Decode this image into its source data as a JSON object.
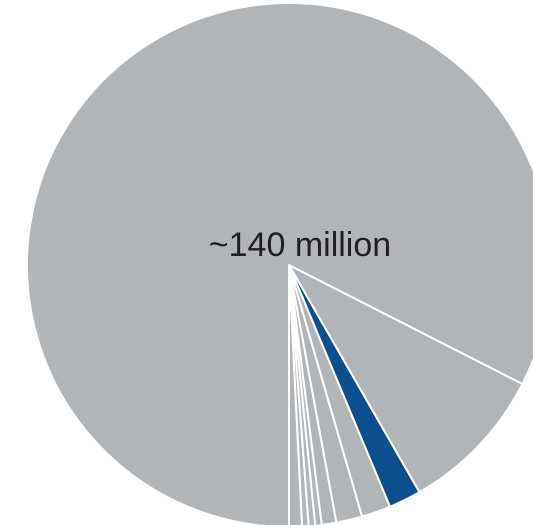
{
  "chart_data": {
    "type": "pie",
    "center_label": "~140 million",
    "start_angle_deg": 180,
    "direction": "counterclockwise",
    "slices": [
      {
        "value": 0.8,
        "color": "#b1b5b8"
      },
      {
        "value": 0.4,
        "color": "#b1b5b8"
      },
      {
        "value": 0.4,
        "color": "#b1b5b8"
      },
      {
        "value": 0.4,
        "color": "#b1b5b8"
      },
      {
        "value": 0.9,
        "color": "#b1b5b8"
      },
      {
        "value": 1.6,
        "color": "#b1b5b8"
      },
      {
        "value": 1.8,
        "color": "#b1b5b8"
      },
      {
        "value": 2.0,
        "color": "#0b4f8f"
      },
      {
        "value": 9.2,
        "color": "#b1b5b8"
      },
      {
        "value": 82.5,
        "color": "#b1b5b8"
      }
    ],
    "border_color": "#ffffff"
  }
}
